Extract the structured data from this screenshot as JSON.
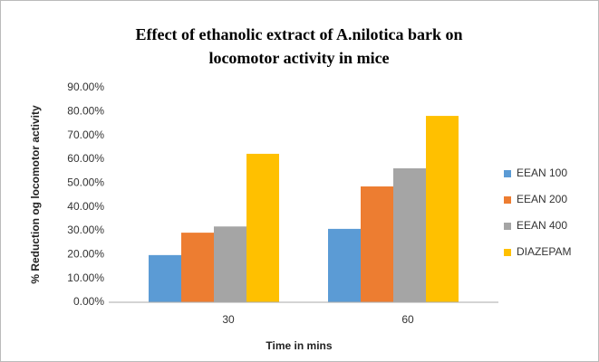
{
  "chart_data": {
    "type": "bar",
    "title": [
      "Effect of ethanolic extract of A.nilotica bark on",
      "locomotor  activity in mice"
    ],
    "xlabel": "Time in mins",
    "ylabel": "% Reduction og locomotor activity",
    "categories": [
      "30",
      "60"
    ],
    "series": [
      {
        "name": "EEAN 100",
        "color": "#5b9bd5",
        "values": [
          19.8,
          30.8
        ]
      },
      {
        "name": "EEAN 200",
        "color": "#ed7d31",
        "values": [
          29.2,
          48.6
        ]
      },
      {
        "name": "EEAN 400",
        "color": "#a5a5a5",
        "values": [
          31.8,
          56.2
        ]
      },
      {
        "name": "DIAZEPAM",
        "color": "#ffc000",
        "values": [
          62.3,
          78.2
        ]
      }
    ],
    "ylim": [
      0,
      90
    ],
    "yticks": [
      {
        "value": 0,
        "label": "0.00%"
      },
      {
        "value": 10,
        "label": "10.00%"
      },
      {
        "value": 20,
        "label": "20.00%"
      },
      {
        "value": 30,
        "label": "30.00%"
      },
      {
        "value": 40,
        "label": "40.00%"
      },
      {
        "value": 50,
        "label": "50.00%"
      },
      {
        "value": 60,
        "label": "60.00%"
      },
      {
        "value": 70,
        "label": "70.00%"
      },
      {
        "value": 80,
        "label": "80.00%"
      },
      {
        "value": 90,
        "label": "90.00%"
      }
    ],
    "grid": false,
    "legend": "right"
  }
}
